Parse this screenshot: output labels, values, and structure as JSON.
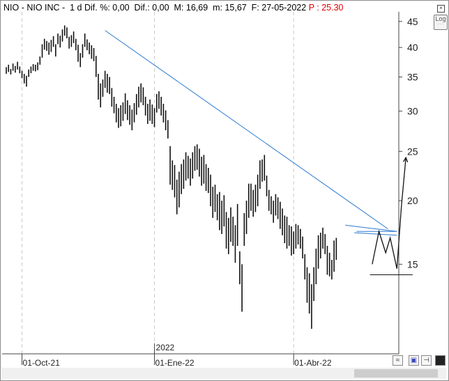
{
  "header": {
    "left": "NIO - NIO INC -  1 d Dif. %: 0,00  Dif.: 0,00  M: 16,69  m: 15,67  F: 27-05-2022 ",
    "last_price": "P : 25.30"
  },
  "buttons": {
    "log_label": "Log",
    "log_sub": "- - -",
    "close_glyph": "×"
  },
  "colors": {
    "trendline": "#2b78d0",
    "bars": "#111111",
    "last_price": "#e00000"
  },
  "chart_data": {
    "type": "ohlc",
    "scale": "log",
    "ylim": [
      10,
      47
    ],
    "y_ticks": [
      15,
      20,
      25,
      30,
      35,
      40,
      45
    ],
    "x_ticks": [
      {
        "label": "01-Oct-21",
        "index": 7
      },
      {
        "label": "01-Ene-22",
        "index": 66
      },
      {
        "label": "01-Abr-22",
        "index": 128
      }
    ],
    "year_marker": {
      "label": "2022",
      "index": 66
    },
    "grid": "vertical dashed at x ticks",
    "bars_low_high": [
      [
        35.5,
        36.6
      ],
      [
        35.8,
        37
      ],
      [
        35.4,
        36.3
      ],
      [
        36,
        37.2
      ],
      [
        35.7,
        36.8
      ],
      [
        36.2,
        37.5
      ],
      [
        35.6,
        36.7
      ],
      [
        34.8,
        36
      ],
      [
        34,
        35.5
      ],
      [
        33.5,
        35.2
      ],
      [
        35,
        36.2
      ],
      [
        35.6,
        36.7
      ],
      [
        36,
        37.1
      ],
      [
        35.9,
        37
      ],
      [
        36.1,
        37.4
      ],
      [
        37,
        38.4
      ],
      [
        38.2,
        40.6
      ],
      [
        39.6,
        41.6
      ],
      [
        39.4,
        41.2
      ],
      [
        38.7,
        40.9
      ],
      [
        39.2,
        41.4
      ],
      [
        40.1,
        42.1
      ],
      [
        38.4,
        40.6
      ],
      [
        40.6,
        42.6
      ],
      [
        40,
        42.2
      ],
      [
        41.1,
        43.4
      ],
      [
        42.2,
        44.2
      ],
      [
        41.7,
        43.8
      ],
      [
        39.8,
        42
      ],
      [
        40.1,
        42.3
      ],
      [
        40.8,
        43
      ],
      [
        39.5,
        41.6
      ],
      [
        37.5,
        40.5
      ],
      [
        36.6,
        39
      ],
      [
        38.2,
        40.6
      ],
      [
        40.1,
        42.6
      ],
      [
        39.5,
        41.5
      ],
      [
        38.8,
        40.9
      ],
      [
        38,
        40.4
      ],
      [
        37.6,
        39.9
      ],
      [
        35,
        38.5
      ],
      [
        31.6,
        35.5
      ],
      [
        30.5,
        34
      ],
      [
        32,
        34.6
      ],
      [
        33.3,
        36
      ],
      [
        32.6,
        35.5
      ],
      [
        32.4,
        35
      ],
      [
        30.6,
        33.3
      ],
      [
        29.7,
        32
      ],
      [
        28.5,
        31
      ],
      [
        27.8,
        30.4
      ],
      [
        28,
        30.8
      ],
      [
        28.7,
        31.2
      ],
      [
        29.6,
        32.5
      ],
      [
        28.8,
        31.5
      ],
      [
        28.2,
        30.8
      ],
      [
        27.5,
        30.2
      ],
      [
        28.5,
        31.1
      ],
      [
        29.5,
        32.4
      ],
      [
        30.5,
        33.5
      ],
      [
        31.2,
        34
      ],
      [
        30.8,
        33.4
      ],
      [
        29.4,
        32
      ],
      [
        28.3,
        31
      ],
      [
        28.7,
        31.6
      ],
      [
        28.3,
        30.9
      ],
      [
        27.9,
        30.4
      ],
      [
        29.8,
        32.4
      ],
      [
        30.3,
        32.8
      ],
      [
        29.4,
        32
      ],
      [
        28.5,
        31
      ],
      [
        27.5,
        30.1
      ],
      [
        26.5,
        28.8
      ],
      [
        21.5,
        25.6
      ],
      [
        21,
        24
      ],
      [
        20.3,
        23.5
      ],
      [
        18.8,
        22
      ],
      [
        19.4,
        22.8
      ],
      [
        20.6,
        23.6
      ],
      [
        21.1,
        24.1
      ],
      [
        21.9,
        24.9
      ],
      [
        22.1,
        24.5
      ],
      [
        21.4,
        24.2
      ],
      [
        22.1,
        24.9
      ],
      [
        22.9,
        25.6
      ],
      [
        23,
        25.8
      ],
      [
        22.3,
        25.3
      ],
      [
        21.4,
        24.4
      ],
      [
        21.6,
        24.6
      ],
      [
        20.9,
        23.6
      ],
      [
        20.7,
        23.2
      ],
      [
        19.5,
        22.5
      ],
      [
        18.5,
        21.3
      ],
      [
        19,
        21.5
      ],
      [
        18.3,
        20.6
      ],
      [
        17.5,
        20.8
      ],
      [
        17.2,
        20
      ],
      [
        17.8,
        20.5
      ],
      [
        16.1,
        19
      ],
      [
        15.7,
        18.5
      ],
      [
        16.6,
        19.4
      ],
      [
        16.3,
        18.6
      ],
      [
        15.1,
        17.9
      ],
      [
        16.3,
        19.7
      ],
      [
        13.7,
        15.9
      ],
      [
        12.1,
        15
      ],
      [
        16.3,
        18.9
      ],
      [
        17.2,
        20
      ],
      [
        18.5,
        21.6
      ],
      [
        19.1,
        21.6
      ],
      [
        18.6,
        21
      ],
      [
        19,
        21.5
      ],
      [
        19.5,
        22.5
      ],
      [
        21.1,
        24
      ],
      [
        21.8,
        24.1
      ],
      [
        21.9,
        24.6
      ],
      [
        20.4,
        22.4
      ],
      [
        19.1,
        21
      ],
      [
        18.8,
        20.4
      ],
      [
        18.1,
        20
      ],
      [
        18.7,
        20.6
      ],
      [
        18.4,
        20.3
      ],
      [
        17.6,
        19.9
      ],
      [
        17.1,
        19.3
      ],
      [
        16.5,
        18.7
      ],
      [
        16.1,
        18.6
      ],
      [
        16.3,
        17.9
      ],
      [
        15.6,
        17.8
      ],
      [
        15.7,
        17.4
      ],
      [
        16.1,
        18
      ],
      [
        16.4,
        17.9
      ],
      [
        16.1,
        17.6
      ],
      [
        15.4,
        17
      ],
      [
        14,
        15.7
      ],
      [
        12.6,
        14.8
      ],
      [
        12,
        14.4
      ],
      [
        11.2,
        13.7
      ],
      [
        12.7,
        14.8
      ],
      [
        13.7,
        16.1
      ],
      [
        14.7,
        17.1
      ],
      [
        15.4,
        17.3
      ],
      [
        16.1,
        17.7
      ],
      [
        15.7,
        17.2
      ],
      [
        14.3,
        16.3
      ],
      [
        14.2,
        15.8
      ],
      [
        14,
        15.3
      ],
      [
        14.5,
        16.7
      ],
      [
        15.3,
        16.9
      ]
    ],
    "trendlines": [
      {
        "from": {
          "index": 44,
          "value": 43.2
        },
        "to": {
          "index": 170,
          "value": 17.6
        },
        "color": "#2b78d0"
      },
      {
        "from": {
          "index": 151,
          "value": 17.9
        },
        "to": {
          "index": 174,
          "value": 17.4
        },
        "color": "#2b78d0"
      },
      {
        "from": {
          "index": 155,
          "value": 17.3
        },
        "to": {
          "index": 174,
          "value": 17.1
        },
        "color": "#2b78d0"
      },
      {
        "from": {
          "index": 156,
          "value": 17.4
        },
        "to": {
          "index": 174,
          "value": 17.4
        },
        "color": "#2b78d0"
      },
      {
        "from": {
          "index": 162,
          "value": 14.3
        },
        "to": {
          "index": 181,
          "value": 14.3
        },
        "color": "#111111"
      }
    ],
    "projection_path": [
      {
        "index": 163,
        "value": 15.0
      },
      {
        "index": 166,
        "value": 17.4
      },
      {
        "index": 169,
        "value": 15.8
      },
      {
        "index": 171,
        "value": 16.9
      },
      {
        "index": 174,
        "value": 14.7
      },
      {
        "index": 176,
        "value": 19.5
      },
      {
        "index": 178,
        "value": 24.3
      }
    ]
  }
}
